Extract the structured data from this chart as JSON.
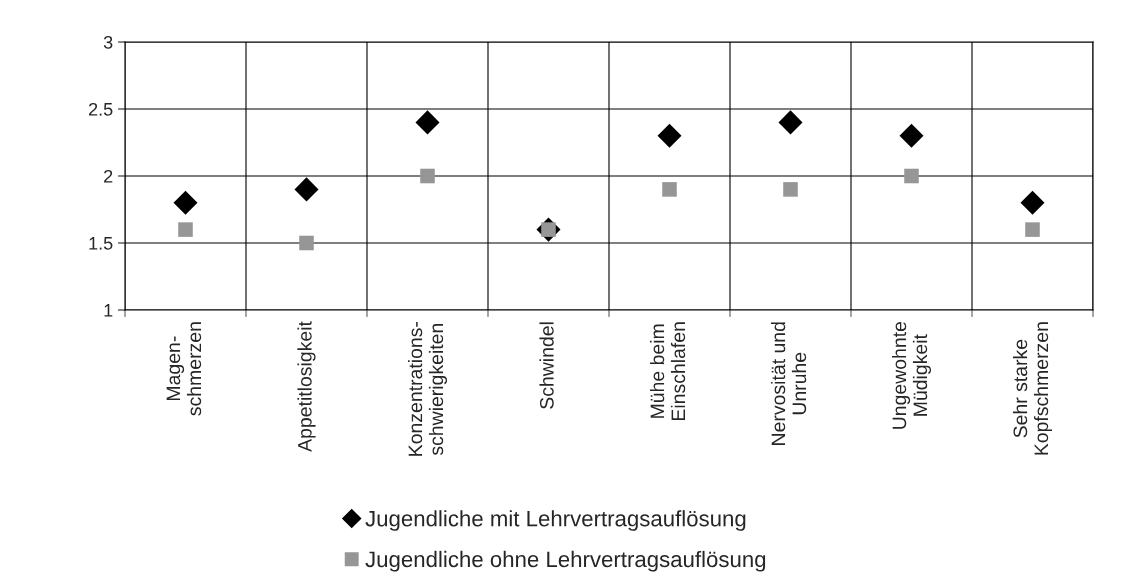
{
  "chart_data": {
    "type": "scatter",
    "categories": [
      "Magen-\nschmerzen",
      "Appetitlosigkeit",
      "Konzentrations-\nschwierigkeiten",
      "Schwindel",
      "Mühe beim\nEinschlafen",
      "Nervosität und\nUnruhe",
      "Ungewohnte\nMüdigkeit",
      "Sehr starke\nKopfschmerzen"
    ],
    "series": [
      {
        "name": "Jugendliche mit Lehrvertragsauflösung",
        "color": "#000000",
        "marker": "diamond",
        "values": [
          1.8,
          1.9,
          2.4,
          1.6,
          2.3,
          2.4,
          2.3,
          1.8
        ]
      },
      {
        "name": "Jugendliche ohne Lehrvertragsauflösung",
        "color": "#969696",
        "marker": "square",
        "values": [
          1.6,
          1.5,
          2.0,
          1.6,
          1.9,
          1.9,
          2.0,
          1.6
        ]
      }
    ],
    "ylim": [
      1,
      3
    ],
    "yticks": [
      1,
      1.5,
      2,
      2.5,
      3
    ],
    "grid": true,
    "legend": "bottom"
  }
}
